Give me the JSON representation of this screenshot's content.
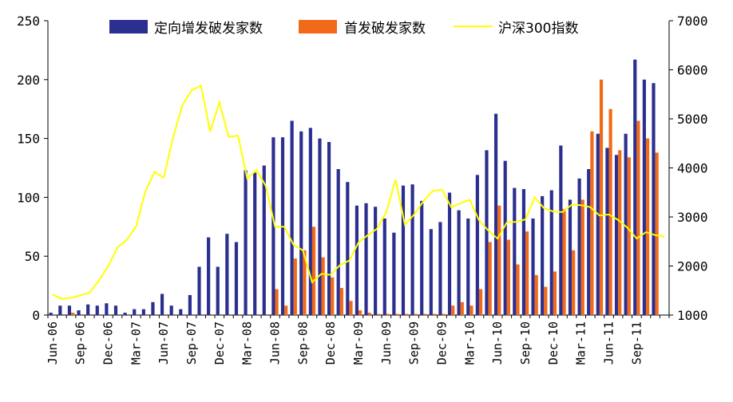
{
  "chart_data": {
    "type": "bar",
    "x": [
      "Jun-06",
      "Jul-06",
      "Aug-06",
      "Sep-06",
      "Oct-06",
      "Nov-06",
      "Dec-06",
      "Jan-07",
      "Feb-07",
      "Mar-07",
      "Apr-07",
      "May-07",
      "Jun-07",
      "Jul-07",
      "Aug-07",
      "Sep-07",
      "Oct-07",
      "Nov-07",
      "Dec-07",
      "Jan-08",
      "Feb-08",
      "Mar-08",
      "Apr-08",
      "May-08",
      "Jun-08",
      "Jul-08",
      "Aug-08",
      "Sep-08",
      "Oct-08",
      "Nov-08",
      "Dec-08",
      "Jan-09",
      "Feb-09",
      "Mar-09",
      "Apr-09",
      "May-09",
      "Jun-09",
      "Jul-09",
      "Aug-09",
      "Sep-09",
      "Oct-09",
      "Nov-09",
      "Dec-09",
      "Jan-10",
      "Feb-10",
      "Mar-10",
      "Apr-10",
      "May-10",
      "Jun-10",
      "Jul-10",
      "Aug-10",
      "Sep-10",
      "Oct-10",
      "Nov-10",
      "Dec-10",
      "Jan-11",
      "Feb-11",
      "Mar-11",
      "Apr-11",
      "May-11",
      "Jun-11",
      "Jul-11",
      "Aug-11",
      "Sep-11",
      "Oct-11",
      "Nov-11",
      "Dec-11"
    ],
    "x_tick_labels": [
      "Jun-06",
      "Sep-06",
      "Dec-06",
      "Mar-07",
      "Jun-07",
      "Sep-07",
      "Dec-07",
      "Mar-08",
      "Jun-08",
      "Sep-08",
      "Dec-08",
      "Mar-09",
      "Jun-09",
      "Sep-09",
      "Dec-09",
      "Mar-10",
      "Jun-10",
      "Sep-10",
      "Dec-10",
      "Mar-11",
      "Jun-11",
      "Sep-11"
    ],
    "series": [
      {
        "name": "定向增发破发家数",
        "axis": "left",
        "kind": "bar",
        "color": "#2b2f8f",
        "values": [
          2,
          8,
          8,
          4,
          9,
          8,
          10,
          8,
          2,
          5,
          5,
          11,
          18,
          8,
          5,
          17,
          41,
          66,
          41,
          69,
          62,
          123,
          121,
          127,
          151,
          151,
          165,
          156,
          159,
          150,
          147,
          124,
          113,
          93,
          95,
          92,
          82,
          70,
          110,
          111,
          97,
          73,
          79,
          104,
          89,
          82,
          119,
          140,
          171,
          131,
          108,
          107,
          82,
          101,
          106,
          144,
          98,
          116,
          124,
          154,
          142,
          136,
          154,
          217,
          200,
          197,
          0
        ],
        "note": "final month bar not present"
      },
      {
        "name": "首发破发家数",
        "axis": "left",
        "kind": "bar",
        "color": "#f06a1a",
        "values": [
          0,
          0,
          2,
          0,
          0,
          0,
          0,
          0,
          0,
          0,
          0,
          0,
          0,
          0,
          0,
          0,
          0,
          0,
          0,
          0,
          0,
          0,
          0,
          0,
          22,
          8,
          48,
          55,
          75,
          49,
          32,
          23,
          12,
          4,
          2,
          1,
          1,
          1,
          1,
          1,
          1,
          1,
          1,
          8,
          11,
          8,
          22,
          62,
          93,
          64,
          43,
          71,
          34,
          24,
          37,
          90,
          55,
          98,
          156,
          200,
          175,
          140,
          134,
          165,
          150,
          138,
          0
        ]
      },
      {
        "name": "沪深300指数",
        "axis": "right",
        "kind": "line",
        "color": "#ffff00",
        "values": [
          1420,
          1330,
          1350,
          1400,
          1460,
          1700,
          2000,
          2380,
          2530,
          2800,
          3510,
          3920,
          3800,
          4620,
          5280,
          5580,
          5680,
          4740,
          5340,
          4630,
          4660,
          3780,
          3960,
          3630,
          2800,
          2800,
          2430,
          2320,
          1670,
          1840,
          1820,
          2020,
          2110,
          2480,
          2630,
          2760,
          3100,
          3760,
          2840,
          3050,
          3320,
          3530,
          3560,
          3200,
          3280,
          3350,
          2930,
          2720,
          2560,
          2890,
          2900,
          2950,
          3400,
          3180,
          3110,
          3100,
          3250,
          3240,
          3200,
          3030,
          3050,
          2940,
          2780,
          2560,
          2690,
          2630,
          2600
        ]
      }
    ],
    "ylim_left": [
      0,
      250
    ],
    "yticks_left": [
      0,
      50,
      100,
      150,
      200,
      250
    ],
    "ylim_right": [
      1000,
      7000
    ],
    "yticks_right": [
      1000,
      2000,
      3000,
      4000,
      5000,
      6000,
      7000
    ],
    "legend_position": "top",
    "grid": false
  }
}
